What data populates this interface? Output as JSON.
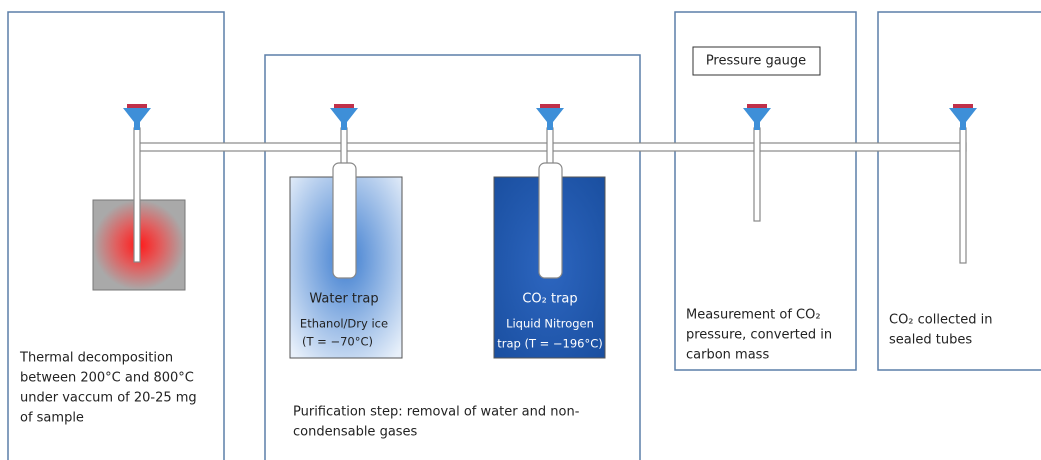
{
  "panels": [
    {
      "caption": [
        "Thermal decomposition",
        "between 200°C and 800°C",
        "under vaccum of 20-25 mg",
        "of sample"
      ]
    },
    {
      "traps": [
        {
          "title": "Water trap",
          "lines": [
            "Ethanol/Dry ice",
            "(T = −70°C)"
          ]
        },
        {
          "title": "CO₂ trap",
          "lines": [
            "Liquid Nitrogen",
            "trap (T = −196°C)"
          ]
        }
      ],
      "caption": [
        "Purification step: removal of water and non-",
        "condensable gases"
      ]
    },
    {
      "label": "Pressure gauge",
      "caption": [
        "Measurement of CO₂",
        "pressure, converted in",
        "carbon mass"
      ]
    },
    {
      "caption": [
        "CO₂ collected in",
        "sealed tubes"
      ]
    }
  ]
}
